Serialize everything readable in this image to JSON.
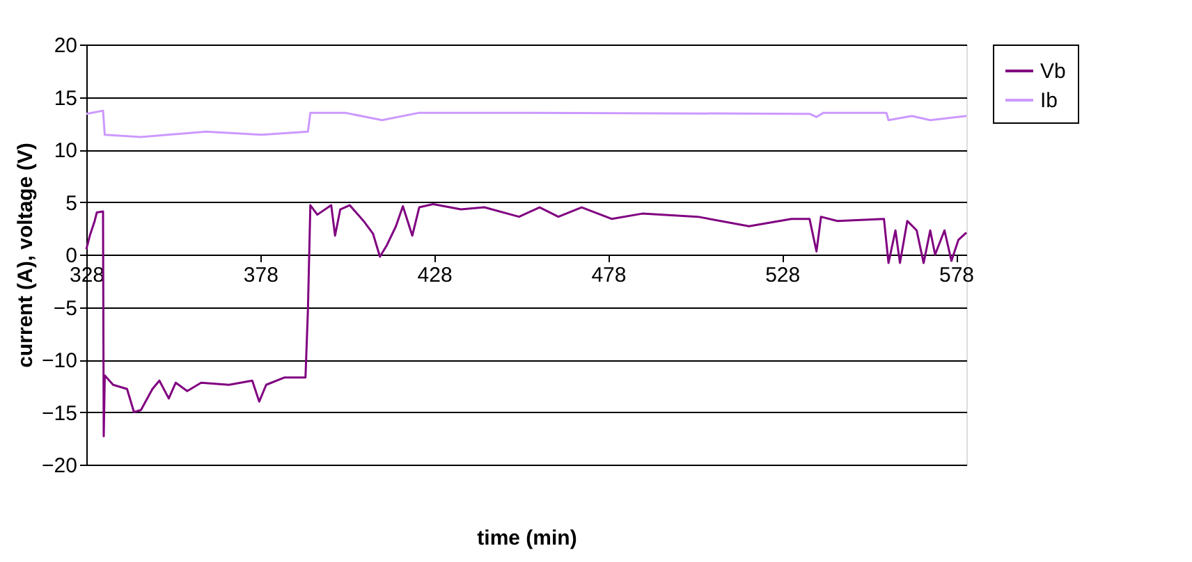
{
  "chart_data": {
    "type": "line",
    "xlabel": "time (min)",
    "ylabel": "current (A), voltage (V)",
    "xlim": [
      328,
      581
    ],
    "xticks": [
      328,
      378,
      428,
      478,
      528,
      578
    ],
    "ylim": [
      -20,
      20
    ],
    "yticks": [
      -20,
      -15,
      -10,
      -5,
      0,
      5,
      10,
      15,
      20
    ],
    "grid": "y",
    "legend": "right",
    "marker": "none",
    "line_style": "solid",
    "series": [
      {
        "name": "Vb",
        "color": "#800080",
        "x": [
          328,
          329,
          330.4,
          331,
          332.8,
          333,
          333.3,
          335.7,
          339.7,
          341.7,
          343.7,
          347,
          349,
          351.7,
          353.7,
          357,
          361,
          369,
          375.7,
          377.7,
          379.7,
          385,
          391,
          391.7,
          392.4,
          394.4,
          398.4,
          399.5,
          401,
          403.7,
          407.7,
          410.4,
          412.4,
          414.4,
          417,
          419,
          421.7,
          423.7,
          427.7,
          435.7,
          442.4,
          452.4,
          458.3,
          463.7,
          470.4,
          479,
          487.8,
          503.8,
          518.5,
          530.7,
          535.9,
          537.9,
          539.2,
          543.9,
          557.3,
          558.6,
          560.6,
          561.9,
          564,
          566.7,
          568.7,
          570.6,
          572,
          574.7,
          576.7,
          578.7,
          581
        ],
        "values": [
          0.5,
          1.8,
          3.2,
          4,
          4.1,
          -17.3,
          -11.5,
          -12.4,
          -12.8,
          -15,
          -14.8,
          -12.8,
          -12,
          -13.7,
          -12.2,
          -13,
          -12.2,
          -12.4,
          -12,
          -14,
          -12.4,
          -11.7,
          -11.7,
          -5.3,
          4.7,
          3.8,
          4.7,
          1.8,
          4.3,
          4.7,
          3.2,
          2,
          -0.2,
          0.9,
          2.7,
          4.6,
          1.8,
          4.5,
          4.8,
          4.3,
          4.5,
          3.6,
          4.5,
          3.6,
          4.5,
          3.4,
          3.9,
          3.6,
          2.7,
          3.4,
          3.4,
          0.3,
          3.6,
          3.2,
          3.4,
          -0.8,
          2.3,
          -0.8,
          3.2,
          2.3,
          -0.8,
          2.3,
          0,
          2.3,
          -0.6,
          1.4,
          2.1
        ]
      },
      {
        "name": "Ib",
        "color": "#cc99ff",
        "x": [
          328,
          332.8,
          333.3,
          343.7,
          362.4,
          378.4,
          391.7,
          392.4,
          402.4,
          413,
          423.7,
          453.7,
          535.9,
          537.9,
          539.9,
          558,
          558.6,
          565.3,
          570.6,
          581
        ],
        "values": [
          13.4,
          13.7,
          11.4,
          11.2,
          11.7,
          11.4,
          11.7,
          13.5,
          13.5,
          12.8,
          13.5,
          13.5,
          13.4,
          13.1,
          13.5,
          13.5,
          12.8,
          13.2,
          12.8,
          13.2
        ]
      }
    ]
  }
}
